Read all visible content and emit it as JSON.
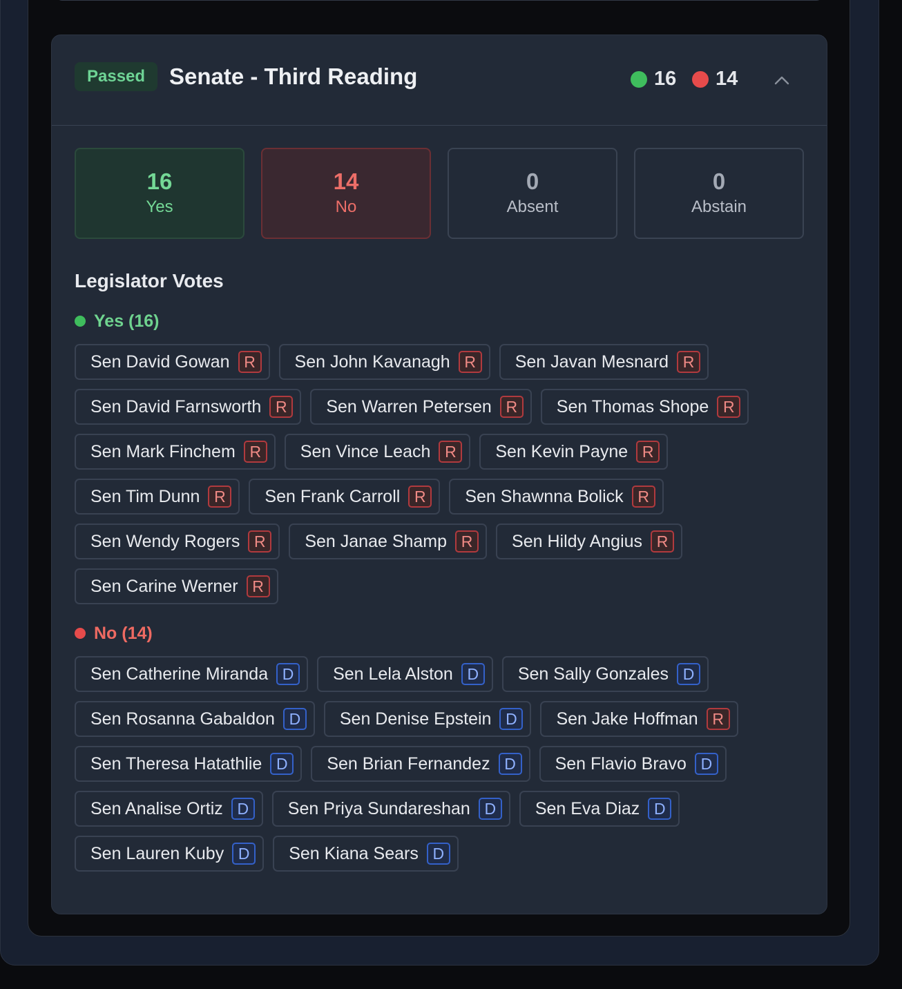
{
  "card": {
    "status": "Passed",
    "title": "Senate - Third Reading",
    "tally_yes": "16",
    "tally_no": "14"
  },
  "summary": [
    {
      "count": "16",
      "label": "Yes"
    },
    {
      "count": "14",
      "label": "No"
    },
    {
      "count": "0",
      "label": "Absent"
    },
    {
      "count": "0",
      "label": "Abstain"
    }
  ],
  "section_title": "Legislator Votes",
  "groups": {
    "yes": {
      "label": "Yes (16)",
      "legislators": [
        {
          "name": "Sen David Gowan",
          "party": "R"
        },
        {
          "name": "Sen John Kavanagh",
          "party": "R"
        },
        {
          "name": "Sen Javan Mesnard",
          "party": "R"
        },
        {
          "name": "Sen David Farnsworth",
          "party": "R"
        },
        {
          "name": "Sen Warren Petersen",
          "party": "R"
        },
        {
          "name": "Sen Thomas Shope",
          "party": "R"
        },
        {
          "name": "Sen Mark Finchem",
          "party": "R"
        },
        {
          "name": "Sen Vince Leach",
          "party": "R"
        },
        {
          "name": "Sen Kevin Payne",
          "party": "R"
        },
        {
          "name": "Sen Tim Dunn",
          "party": "R"
        },
        {
          "name": "Sen Frank Carroll",
          "party": "R"
        },
        {
          "name": "Sen Shawnna Bolick",
          "party": "R"
        },
        {
          "name": "Sen Wendy Rogers",
          "party": "R"
        },
        {
          "name": "Sen Janae Shamp",
          "party": "R"
        },
        {
          "name": "Sen Hildy Angius",
          "party": "R"
        },
        {
          "name": "Sen Carine Werner",
          "party": "R"
        }
      ]
    },
    "no": {
      "label": "No (14)",
      "legislators": [
        {
          "name": "Sen Catherine Miranda",
          "party": "D"
        },
        {
          "name": "Sen Lela Alston",
          "party": "D"
        },
        {
          "name": "Sen Sally Gonzales",
          "party": "D"
        },
        {
          "name": "Sen Rosanna Gabaldon",
          "party": "D"
        },
        {
          "name": "Sen Denise Epstein",
          "party": "D"
        },
        {
          "name": "Sen Jake Hoffman",
          "party": "R"
        },
        {
          "name": "Sen Theresa Hatathlie",
          "party": "D"
        },
        {
          "name": "Sen Brian Fernandez",
          "party": "D"
        },
        {
          "name": "Sen Flavio Bravo",
          "party": "D"
        },
        {
          "name": "Sen Analise Ortiz",
          "party": "D"
        },
        {
          "name": "Sen Priya Sundareshan",
          "party": "D"
        },
        {
          "name": "Sen Eva Diaz",
          "party": "D"
        },
        {
          "name": "Sen Lauren Kuby",
          "party": "D"
        },
        {
          "name": "Sen Kiana Sears",
          "party": "D"
        }
      ]
    }
  },
  "colors": {
    "yes": "#3fbd5d",
    "no": "#e64b4b",
    "republican": "#b13a3e",
    "democrat": "#3461c9"
  },
  "icons": {
    "collapse": "chevron-up-icon"
  }
}
